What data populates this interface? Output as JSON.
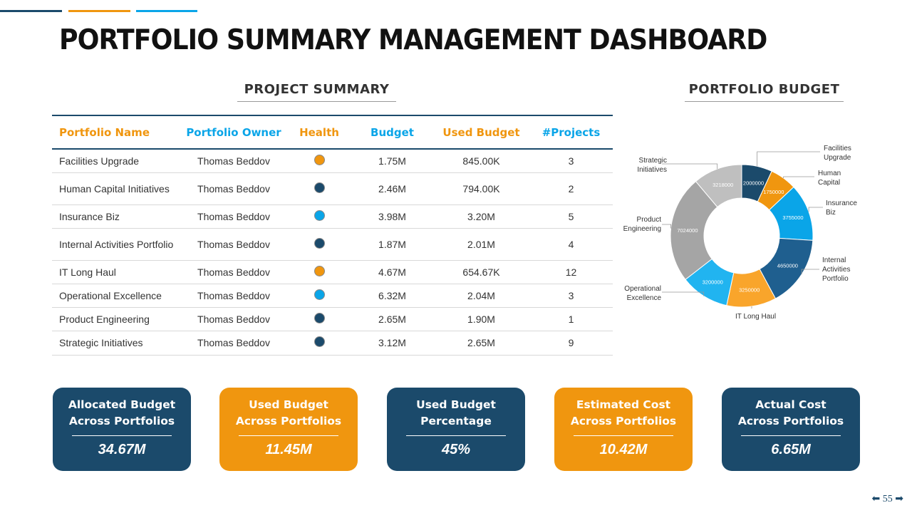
{
  "title": "PORTFOLIO SUMMARY MANAGEMENT DASHBOARD",
  "project_summary": {
    "heading": "PROJECT SUMMARY",
    "columns": [
      "Portfolio Name",
      "Portfolio Owner",
      "Health",
      "Budget",
      "Used Budget",
      "#Projects"
    ],
    "rows": [
      {
        "name": "Facilities Upgrade",
        "owner": "Thomas Beddov",
        "health": "#f0960f",
        "budget": "1.75M",
        "used": "845.00K",
        "projects": "3"
      },
      {
        "name": "Human Capital Initiatives",
        "owner": "Thomas Beddov",
        "health": "#1b4a6b",
        "budget": "2.46M",
        "used": "794.00K",
        "projects": "2"
      },
      {
        "name": "Insurance Biz",
        "owner": "Thomas Beddov",
        "health": "#0aa5e8",
        "budget": "3.98M",
        "used": "3.20M",
        "projects": "5"
      },
      {
        "name": "Internal Activities Portfolio",
        "owner": "Thomas Beddov",
        "health": "#1b4a6b",
        "budget": "1.87M",
        "used": "2.01M",
        "projects": "4"
      },
      {
        "name": "IT Long Haul",
        "owner": "Thomas Beddov",
        "health": "#f0960f",
        "budget": "4.67M",
        "used": "654.67K",
        "projects": "12"
      },
      {
        "name": "Operational Excellence",
        "owner": "Thomas Beddov",
        "health": "#0aa5e8",
        "budget": "6.32M",
        "used": "2.04M",
        "projects": "3"
      },
      {
        "name": "Product Engineering",
        "owner": "Thomas Beddov",
        "health": "#1b4a6b",
        "budget": "2.65M",
        "used": "1.90M",
        "projects": "1"
      },
      {
        "name": "Strategic Initiatives",
        "owner": "Thomas Beddov",
        "health": "#1b4a6b",
        "budget": "3.12M",
        "used": "2.65M",
        "projects": "9"
      }
    ]
  },
  "chart_data": {
    "type": "pie",
    "title": "PORTFOLIO BUDGET",
    "donut": true,
    "categories": [
      "Facilities Upgrade",
      "Human Capital",
      "Insurance Biz",
      "Internal Activities Portfolio",
      "IT Long Haul",
      "Operational Excellence",
      "Product Engineering",
      "Strategic Initiatives"
    ],
    "values": [
      2000000,
      1750000,
      3755000,
      4650000,
      3250000,
      3200000,
      7024000,
      3218000
    ],
    "colors": [
      "#1b4a6b",
      "#f0960f",
      "#0aa5e8",
      "#1f5f8f",
      "#f9a52b",
      "#21b4f0",
      "#a5a5a5",
      "#bfbfbf"
    ]
  },
  "cards": [
    {
      "title": "Allocated Budget Across Portfolios",
      "value": "34.67M",
      "color": "#1b4a6b"
    },
    {
      "title": "Used Budget Across Portfolios",
      "value": "11.45M",
      "color": "#f0960f"
    },
    {
      "title": "Used Budget Percentage",
      "value": "45%",
      "color": "#1b4a6b"
    },
    {
      "title": "Estimated Cost Across Portfolios",
      "value": "10.42M",
      "color": "#f0960f"
    },
    {
      "title": "Actual Cost Across Portfolios",
      "value": "6.65M",
      "color": "#1b4a6b"
    }
  ],
  "page_number": "55"
}
